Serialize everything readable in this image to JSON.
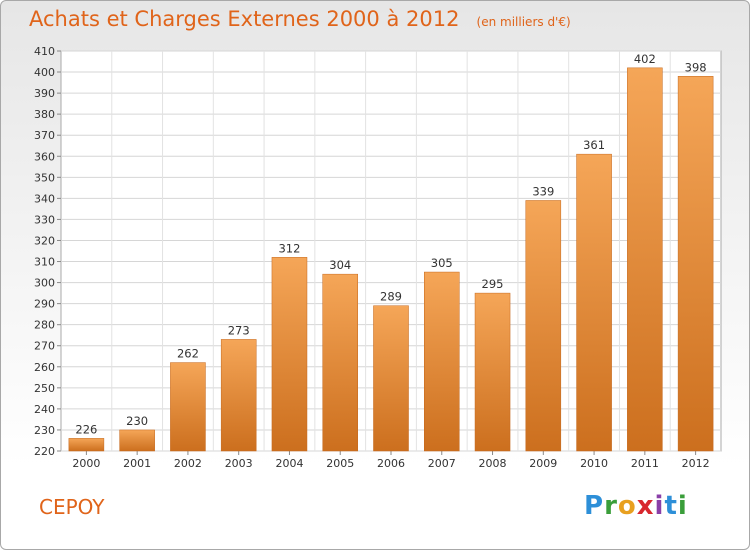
{
  "title": "Achats et Charges Externes 2000 à 2012",
  "subtitle": "(en milliers d'€)",
  "commune": "CEPOY",
  "logo": {
    "letters": [
      "P",
      "r",
      "o",
      "x",
      "i",
      "t",
      "i"
    ],
    "colors": [
      "#2d8fd8",
      "#3a9e3a",
      "#e8a020",
      "#d8272e",
      "#8a3fa8",
      "#2d8fd8",
      "#3a9e3a"
    ]
  },
  "colors": {
    "accent": "#e0641a",
    "bar_top": "#f5a658",
    "bar_bottom": "#cc6f1e"
  },
  "chart_data": {
    "type": "bar",
    "categories": [
      "2000",
      "2001",
      "2002",
      "2003",
      "2004",
      "2005",
      "2006",
      "2007",
      "2008",
      "2009",
      "2010",
      "2011",
      "2012"
    ],
    "values": [
      226,
      230,
      262,
      273,
      312,
      304,
      289,
      305,
      295,
      339,
      361,
      402,
      398
    ],
    "title": "Achats et Charges Externes 2000 à 2012",
    "subtitle": "(en milliers d'€)",
    "xlabel": "",
    "ylabel": "",
    "ylim": [
      220,
      410
    ],
    "yticks": [
      220,
      230,
      240,
      250,
      260,
      270,
      280,
      290,
      300,
      310,
      320,
      330,
      340,
      350,
      360,
      370,
      380,
      390,
      400,
      410
    ],
    "grid": true,
    "data_labels": true
  }
}
